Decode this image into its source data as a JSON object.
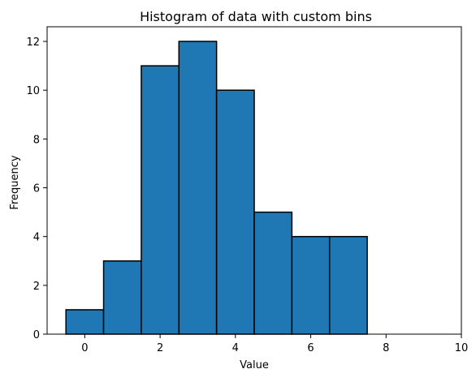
{
  "chart_data": {
    "type": "bar",
    "subtype": "histogram",
    "title": "Histogram of data with custom bins",
    "xlabel": "Value",
    "ylabel": "Frequency",
    "bins": [
      {
        "x0": -0.5,
        "x1": 0.5,
        "count": 1
      },
      {
        "x0": 0.5,
        "x1": 1.5,
        "count": 3
      },
      {
        "x0": 1.5,
        "x1": 2.5,
        "count": 11
      },
      {
        "x0": 2.5,
        "x1": 3.5,
        "count": 12
      },
      {
        "x0": 3.5,
        "x1": 4.5,
        "count": 10
      },
      {
        "x0": 4.5,
        "x1": 5.5,
        "count": 5
      },
      {
        "x0": 5.5,
        "x1": 6.5,
        "count": 4
      },
      {
        "x0": 6.5,
        "x1": 7.5,
        "count": 4
      },
      {
        "x0": 7.5,
        "x1": 8.5,
        "count": 0
      },
      {
        "x0": 8.5,
        "x1": 9.5,
        "count": 0
      }
    ],
    "xlim": [
      -1,
      10
    ],
    "ylim": [
      0,
      12.6
    ],
    "xticks": [
      0,
      2,
      4,
      6,
      8,
      10
    ],
    "yticks": [
      0,
      2,
      4,
      6,
      8,
      10,
      12
    ],
    "grid": false,
    "colors": {
      "bar_fill": "#1f77b4",
      "bar_edge": "#000000"
    }
  }
}
